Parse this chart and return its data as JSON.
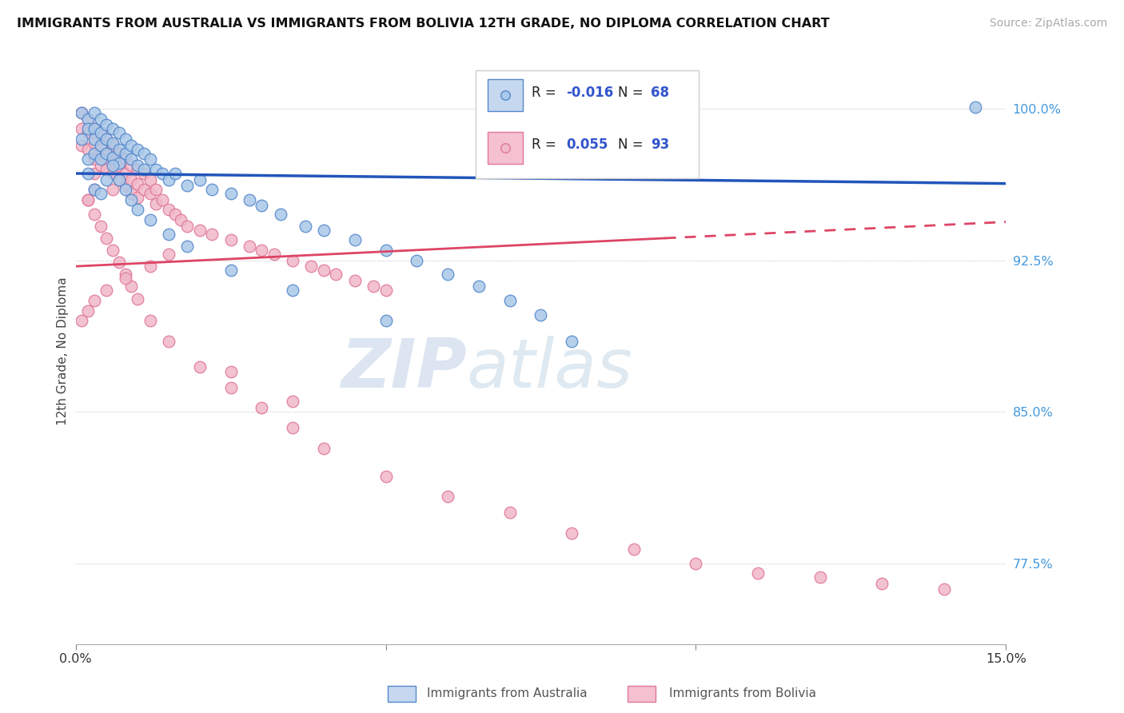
{
  "title": "IMMIGRANTS FROM AUSTRALIA VS IMMIGRANTS FROM BOLIVIA 12TH GRADE, NO DIPLOMA CORRELATION CHART",
  "source": "Source: ZipAtlas.com",
  "ylabel": "12th Grade, No Diploma",
  "xlim": [
    0.0,
    0.15
  ],
  "ylim": [
    0.735,
    1.025
  ],
  "yticks": [
    0.775,
    0.85,
    0.925,
    1.0
  ],
  "yticklabels": [
    "77.5%",
    "85.0%",
    "92.5%",
    "100.0%"
  ],
  "australia_color": "#aac8e8",
  "bolivia_color": "#f0b8c8",
  "australia_edge": "#5588cc",
  "bolivia_edge": "#e07898",
  "trend_australia_color": "#2255bb",
  "trend_bolivia_color": "#dd4466",
  "watermark_zip": "ZIP",
  "watermark_atlas": "atlas",
  "aus_trend_y0": 0.968,
  "aus_trend_y1": 0.963,
  "bol_trend_y0": 0.922,
  "bol_trend_y1": 0.944,
  "bol_trend_solid_end": 0.095,
  "australia_x": [
    0.001,
    0.001,
    0.002,
    0.002,
    0.002,
    0.003,
    0.003,
    0.003,
    0.003,
    0.004,
    0.004,
    0.004,
    0.004,
    0.005,
    0.005,
    0.005,
    0.006,
    0.006,
    0.006,
    0.007,
    0.007,
    0.007,
    0.008,
    0.008,
    0.009,
    0.009,
    0.01,
    0.01,
    0.011,
    0.011,
    0.012,
    0.013,
    0.014,
    0.015,
    0.016,
    0.018,
    0.02,
    0.022,
    0.025,
    0.028,
    0.03,
    0.033,
    0.037,
    0.04,
    0.045,
    0.05,
    0.055,
    0.06,
    0.065,
    0.07,
    0.075,
    0.08,
    0.002,
    0.003,
    0.004,
    0.005,
    0.006,
    0.007,
    0.008,
    0.009,
    0.01,
    0.012,
    0.015,
    0.018,
    0.025,
    0.035,
    0.05,
    0.145
  ],
  "australia_y": [
    0.998,
    0.985,
    0.995,
    0.99,
    0.975,
    0.998,
    0.99,
    0.985,
    0.978,
    0.995,
    0.988,
    0.982,
    0.975,
    0.992,
    0.985,
    0.978,
    0.99,
    0.983,
    0.976,
    0.988,
    0.98,
    0.973,
    0.985,
    0.978,
    0.982,
    0.975,
    0.98,
    0.972,
    0.978,
    0.97,
    0.975,
    0.97,
    0.968,
    0.965,
    0.968,
    0.962,
    0.965,
    0.96,
    0.958,
    0.955,
    0.952,
    0.948,
    0.942,
    0.94,
    0.935,
    0.93,
    0.925,
    0.918,
    0.912,
    0.905,
    0.898,
    0.885,
    0.968,
    0.96,
    0.958,
    0.965,
    0.972,
    0.965,
    0.96,
    0.955,
    0.95,
    0.945,
    0.938,
    0.932,
    0.92,
    0.91,
    0.895,
    1.001
  ],
  "bolivia_x": [
    0.001,
    0.001,
    0.001,
    0.002,
    0.002,
    0.002,
    0.003,
    0.003,
    0.003,
    0.003,
    0.004,
    0.004,
    0.004,
    0.005,
    0.005,
    0.005,
    0.006,
    0.006,
    0.006,
    0.006,
    0.007,
    0.007,
    0.007,
    0.008,
    0.008,
    0.008,
    0.009,
    0.009,
    0.009,
    0.01,
    0.01,
    0.01,
    0.011,
    0.011,
    0.012,
    0.012,
    0.013,
    0.013,
    0.014,
    0.015,
    0.016,
    0.017,
    0.018,
    0.02,
    0.022,
    0.025,
    0.028,
    0.03,
    0.032,
    0.035,
    0.038,
    0.04,
    0.042,
    0.045,
    0.048,
    0.05,
    0.002,
    0.003,
    0.004,
    0.005,
    0.006,
    0.007,
    0.008,
    0.009,
    0.01,
    0.012,
    0.015,
    0.02,
    0.025,
    0.03,
    0.035,
    0.04,
    0.05,
    0.06,
    0.07,
    0.08,
    0.09,
    0.1,
    0.11,
    0.12,
    0.13,
    0.14,
    0.015,
    0.012,
    0.008,
    0.005,
    0.003,
    0.002,
    0.001,
    0.002,
    0.003,
    0.025,
    0.035
  ],
  "bolivia_y": [
    0.998,
    0.99,
    0.982,
    0.995,
    0.988,
    0.98,
    0.99,
    0.983,
    0.975,
    0.968,
    0.988,
    0.98,
    0.972,
    0.985,
    0.978,
    0.97,
    0.982,
    0.975,
    0.968,
    0.96,
    0.978,
    0.972,
    0.965,
    0.975,
    0.968,
    0.962,
    0.972,
    0.965,
    0.958,
    0.97,
    0.963,
    0.956,
    0.968,
    0.96,
    0.965,
    0.958,
    0.96,
    0.953,
    0.955,
    0.95,
    0.948,
    0.945,
    0.942,
    0.94,
    0.938,
    0.935,
    0.932,
    0.93,
    0.928,
    0.925,
    0.922,
    0.92,
    0.918,
    0.915,
    0.912,
    0.91,
    0.955,
    0.948,
    0.942,
    0.936,
    0.93,
    0.924,
    0.918,
    0.912,
    0.906,
    0.895,
    0.885,
    0.872,
    0.862,
    0.852,
    0.842,
    0.832,
    0.818,
    0.808,
    0.8,
    0.79,
    0.782,
    0.775,
    0.77,
    0.768,
    0.765,
    0.762,
    0.928,
    0.922,
    0.916,
    0.91,
    0.905,
    0.9,
    0.895,
    0.955,
    0.96,
    0.87,
    0.855
  ]
}
